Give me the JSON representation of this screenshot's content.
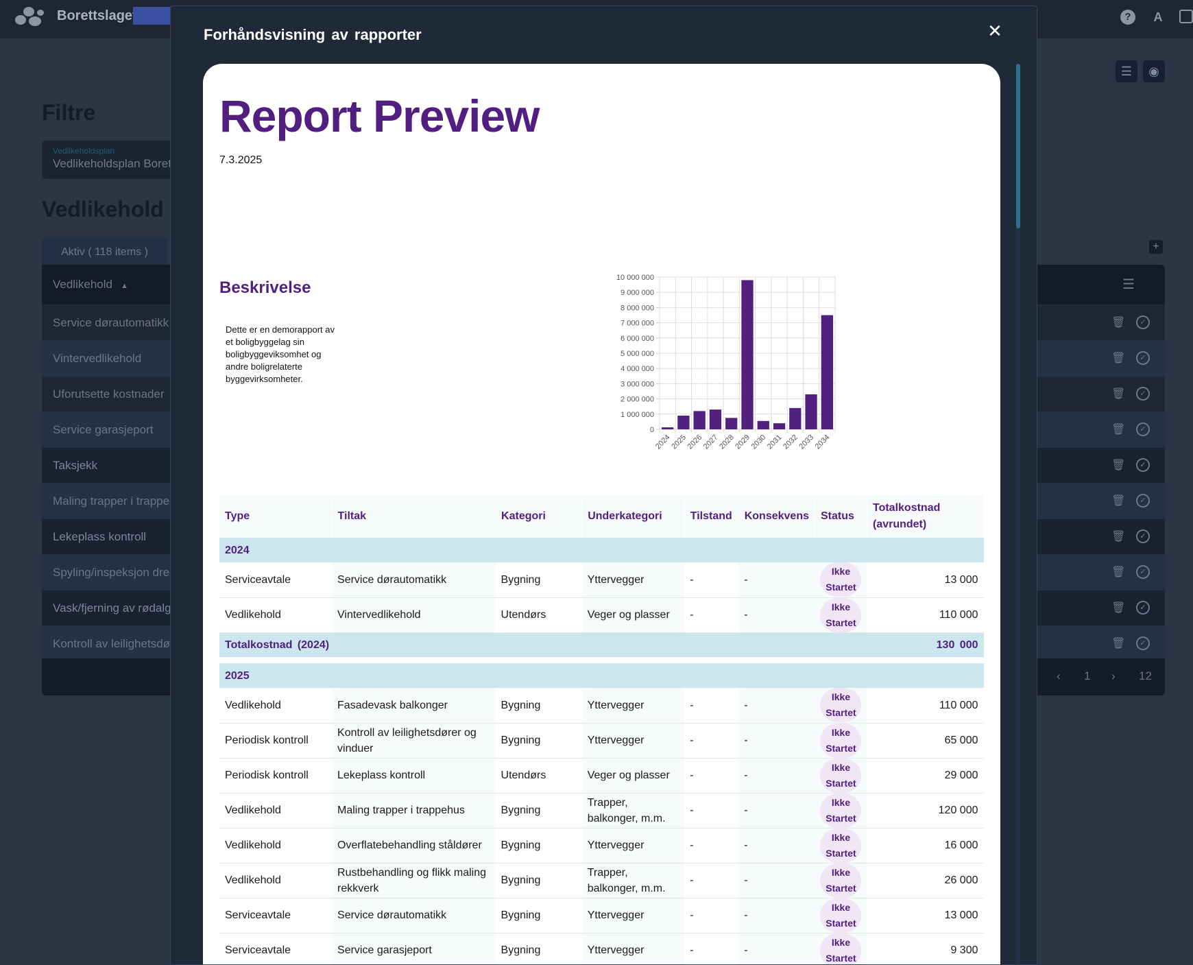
{
  "app": {
    "brand": "Borettslaget",
    "filters_title": "Filtre",
    "filter_label": "Vedlikeholdsplan",
    "filter_value": "Vedlikeholdsplan Borettslaget",
    "section_title": "Vedlikehold",
    "tab_active": "Aktiv ( 118 items )",
    "column_header": "Vedlikehold",
    "rows": [
      "Service dørautomatikk",
      "Vintervedlikehold",
      "Uforutsette kostnader",
      "Service garasjeport",
      "Taksjekk",
      "Maling trapper i trappehus",
      "Lekeplass kontroll",
      "Spyling/inspeksjon drenering",
      "Vask/fjerning av rødalger",
      "Kontroll av leilighetsdører"
    ],
    "pager": {
      "prev": "‹",
      "page": "1",
      "next": "›",
      "last": "12"
    }
  },
  "modal": {
    "title": "Forhåndsvisning av rapporter",
    "close": "✕"
  },
  "report": {
    "title": "Report Preview",
    "date": "7.3.2025",
    "description_title": "Beskrivelse",
    "description": "Dette er en demorapport av et boligbyggelag sin boligbyggeviksomhet og andre boligrelaterte byggevirksomheter."
  },
  "chart_data": {
    "type": "bar",
    "categories": [
      "2024",
      "2025",
      "2026",
      "2027",
      "2028",
      "2029",
      "2030",
      "2031",
      "2032",
      "2033",
      "2034"
    ],
    "values": [
      130000,
      900000,
      1200000,
      1300000,
      750000,
      9800000,
      550000,
      400000,
      1400000,
      2300000,
      7500000
    ],
    "ylim": [
      0,
      10000000
    ],
    "yticks": [
      "0",
      "1 000 000",
      "2 000 000",
      "3 000 000",
      "4 000 000",
      "5 000 000",
      "6 000 000",
      "7 000 000",
      "8 000 000",
      "9 000 000",
      "10 000 000"
    ],
    "grid": true,
    "color": "#52207e"
  },
  "table": {
    "headers": [
      "Type",
      "Tiltak",
      "Kategori",
      "Underkategori",
      "Tilstand",
      "Konsekvens",
      "Status",
      "Totalkostnad (avrundet)"
    ],
    "status_line1": "Ikke",
    "status_line2": "Startet",
    "year_2024": "2024",
    "rows_2024": [
      {
        "type": "Serviceavtale",
        "tiltak": "Service dørautomatikk",
        "kategori": "Bygning",
        "underkategori": "Yttervegger",
        "tilstand": "-",
        "konsekvens": "-",
        "kostnad": "13 000"
      },
      {
        "type": "Vedlikehold",
        "tiltak": "Vintervedlikehold",
        "kategori": "Utendørs",
        "underkategori": "Veger og plasser",
        "tilstand": "-",
        "konsekvens": "-",
        "kostnad": "110 000"
      }
    ],
    "total_2024_label": "Totalkostnad (2024)",
    "total_2024_value": "130 000",
    "year_2025": "2025",
    "rows_2025": [
      {
        "type": "Vedlikehold",
        "tiltak": "Fasadevask balkonger",
        "kategori": "Bygning",
        "underkategori": "Yttervegger",
        "tilstand": "-",
        "konsekvens": "-",
        "kostnad": "110 000"
      },
      {
        "type": "Periodisk kontroll",
        "tiltak": "Kontroll av leilighetsdører og vinduer",
        "kategori": "Bygning",
        "underkategori": "Yttervegger",
        "tilstand": "-",
        "konsekvens": "-",
        "kostnad": "65 000"
      },
      {
        "type": "Periodisk kontroll",
        "tiltak": "Lekeplass kontroll",
        "kategori": "Utendørs",
        "underkategori": "Veger og plasser",
        "tilstand": "-",
        "konsekvens": "-",
        "kostnad": "29 000"
      },
      {
        "type": "Vedlikehold",
        "tiltak": "Maling trapper i trappehus",
        "kategori": "Bygning",
        "underkategori": "Trapper, balkonger, m.m.",
        "tilstand": "-",
        "konsekvens": "-",
        "kostnad": "120 000"
      },
      {
        "type": "Vedlikehold",
        "tiltak": "Overflatebehandling ståldører",
        "kategori": "Bygning",
        "underkategori": "Yttervegger",
        "tilstand": "-",
        "konsekvens": "-",
        "kostnad": "16 000"
      },
      {
        "type": "Vedlikehold",
        "tiltak": "Rustbehandling og flikk maling rekkverk",
        "kategori": "Bygning",
        "underkategori": "Trapper, balkonger, m.m.",
        "tilstand": "-",
        "konsekvens": "-",
        "kostnad": "26 000"
      },
      {
        "type": "Serviceavtale",
        "tiltak": "Service dørautomatikk",
        "kategori": "Bygning",
        "underkategori": "Yttervegger",
        "tilstand": "-",
        "konsekvens": "-",
        "kostnad": "13 000"
      },
      {
        "type": "Serviceavtale",
        "tiltak": "Service garasjeport",
        "kategori": "Bygning",
        "underkategori": "Yttervegger",
        "tilstand": "-",
        "konsekvens": "-",
        "kostnad": "9 300"
      }
    ]
  }
}
